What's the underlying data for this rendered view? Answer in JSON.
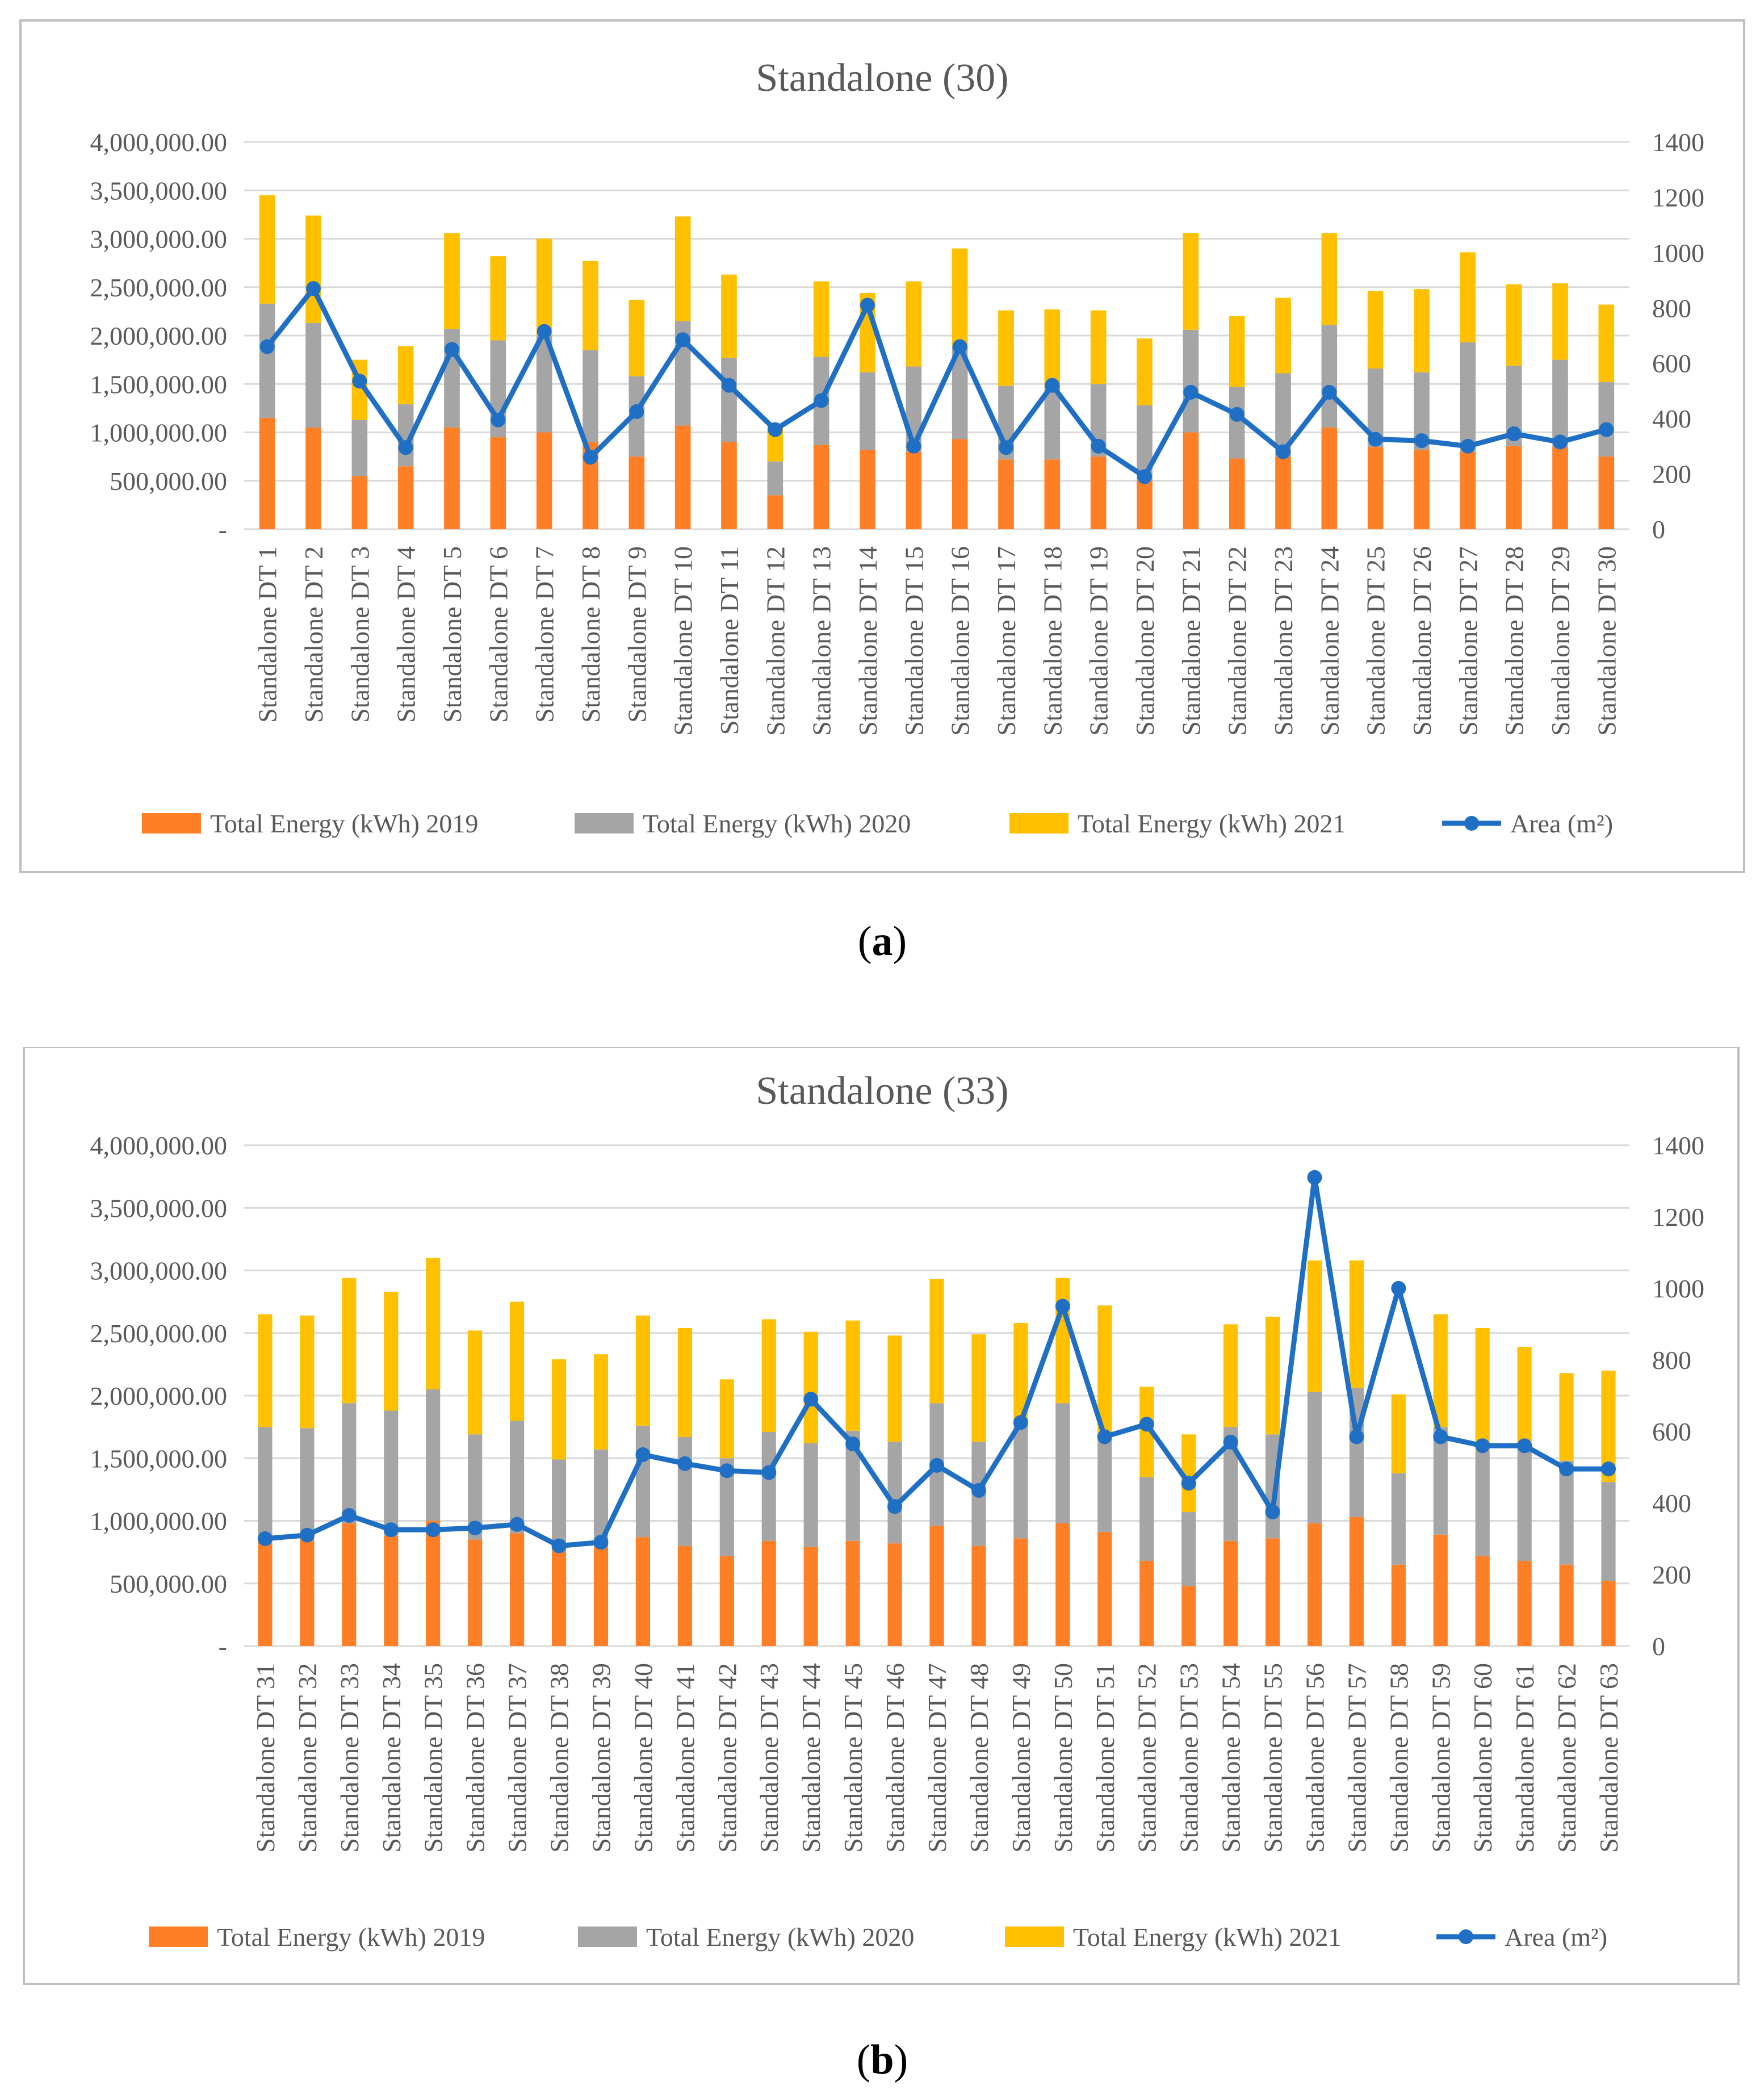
{
  "colors": {
    "e2019": "#FF7F27",
    "e2020": "#A5A5A5",
    "e2021": "#FFC000",
    "area": "#1F6FC5",
    "grid": "#D9D9D9",
    "frame": "#BFBFBF",
    "text": "#595959"
  },
  "chart_data": [
    {
      "type": "bar",
      "stacked": true,
      "title": "Standalone (30)",
      "caption_open": "(",
      "caption_letter": "a",
      "caption_close": ")",
      "y_left_ticks": [
        "-",
        "500,000.00",
        "1,000,000.00",
        "1,500,000.00",
        "2,000,000.00",
        "2,500,000.00",
        "3,000,000.00",
        "3,500,000.00",
        "4,000,000.00"
      ],
      "y_left_lim": [
        0,
        4000000
      ],
      "y_right_ticks": [
        "0",
        "200",
        "400",
        "600",
        "800",
        "1000",
        "1200",
        "1400"
      ],
      "y_right_lim": [
        0,
        1400
      ],
      "legend": [
        "Total Energy (kWh) 2019",
        "Total Energy (kWh) 2020",
        "Total Energy (kWh) 2021",
        "Area (m²)"
      ],
      "legend_position": "bottom",
      "categories": [
        "Standalone DT 1",
        "Standalone DT 2",
        "Standalone DT 3",
        "Standalone DT 4",
        "Standalone DT 5",
        "Standalone DT 6",
        "Standalone DT 7",
        "Standalone DT 8",
        "Standalone DT 9",
        "Standalone DT 10",
        "Standalone DT 11",
        "Standalone DT 12",
        "Standalone DT 13",
        "Standalone DT 14",
        "Standalone DT 15",
        "Standalone DT 16",
        "Standalone DT 17",
        "Standalone DT 18",
        "Standalone DT 19",
        "Standalone DT 20",
        "Standalone DT 21",
        "Standalone DT 22",
        "Standalone DT 23",
        "Standalone DT 24",
        "Standalone DT 25",
        "Standalone DT 26",
        "Standalone DT 27",
        "Standalone DT 28",
        "Standalone DT 29",
        "Standalone DT 30"
      ],
      "series": [
        {
          "name": "Total Energy (kWh) 2019",
          "axis": "left",
          "values": [
            1150000,
            1050000,
            550000,
            650000,
            1050000,
            950000,
            1000000,
            900000,
            750000,
            1070000,
            900000,
            350000,
            870000,
            820000,
            800000,
            930000,
            720000,
            720000,
            750000,
            500000,
            1000000,
            730000,
            750000,
            1050000,
            850000,
            820000,
            800000,
            860000,
            850000,
            750000
          ]
        },
        {
          "name": "Total Energy (kWh) 2020",
          "axis": "left",
          "values": [
            1180000,
            1080000,
            580000,
            640000,
            1020000,
            1000000,
            1000000,
            950000,
            830000,
            1080000,
            870000,
            350000,
            910000,
            800000,
            880000,
            960000,
            760000,
            760000,
            750000,
            780000,
            1060000,
            740000,
            860000,
            1060000,
            810000,
            800000,
            1130000,
            830000,
            900000,
            770000
          ]
        },
        {
          "name": "Total Energy (kWh) 2021",
          "axis": "left",
          "values": [
            1120000,
            1110000,
            620000,
            600000,
            990000,
            870000,
            1000000,
            920000,
            790000,
            1080000,
            860000,
            370000,
            780000,
            820000,
            880000,
            1010000,
            780000,
            790000,
            760000,
            690000,
            1000000,
            730000,
            780000,
            950000,
            800000,
            860000,
            930000,
            840000,
            790000,
            800000
          ]
        },
        {
          "name": "Area (m²)",
          "axis": "right",
          "type": "line",
          "values": [
            660,
            870,
            535,
            295,
            650,
            395,
            715,
            260,
            425,
            685,
            520,
            360,
            465,
            810,
            300,
            660,
            295,
            520,
            300,
            190,
            495,
            415,
            280,
            495,
            325,
            320,
            300,
            345,
            315,
            360
          ]
        }
      ]
    },
    {
      "type": "bar",
      "stacked": true,
      "title": "Standalone (33)",
      "caption_open": "(",
      "caption_letter": "b",
      "caption_close": ")",
      "y_left_ticks": [
        "-",
        "500,000.00",
        "1,000,000.00",
        "1,500,000.00",
        "2,000,000.00",
        "2,500,000.00",
        "3,000,000.00",
        "3,500,000.00",
        "4,000,000.00"
      ],
      "y_left_lim": [
        0,
        4000000
      ],
      "y_right_ticks": [
        "0",
        "200",
        "400",
        "600",
        "800",
        "1000",
        "1200",
        "1400"
      ],
      "y_right_lim": [
        0,
        1400
      ],
      "legend": [
        "Total Energy (kWh) 2019",
        "Total Energy (kWh) 2020",
        "Total Energy (kWh) 2021",
        "Area (m²)"
      ],
      "legend_position": "bottom",
      "categories": [
        "Standalone DT 31",
        "Standalone DT 32",
        "Standalone DT 33",
        "Standalone DT 34",
        "Standalone DT 35",
        "Standalone DT 36",
        "Standalone DT 37",
        "Standalone DT 38",
        "Standalone DT 39",
        "Standalone DT 40",
        "Standalone DT 41",
        "Standalone DT 42",
        "Standalone DT 43",
        "Standalone DT 44",
        "Standalone DT 45",
        "Standalone DT 46",
        "Standalone DT 47",
        "Standalone DT 48",
        "Standalone DT 49",
        "Standalone DT 50",
        "Standalone DT 51",
        "Standalone DT 52",
        "Standalone DT 53",
        "Standalone DT 54",
        "Standalone DT 55",
        "Standalone DT 56",
        "Standalone DT 57",
        "Standalone DT 58",
        "Standalone DT 59",
        "Standalone DT 60",
        "Standalone DT 61",
        "Standalone DT 62",
        "Standalone DT 63"
      ],
      "series": [
        {
          "name": "Total Energy (kWh) 2019",
          "axis": "left",
          "values": [
            870000,
            870000,
            980000,
            880000,
            1000000,
            850000,
            900000,
            760000,
            790000,
            870000,
            800000,
            720000,
            840000,
            790000,
            840000,
            820000,
            960000,
            800000,
            860000,
            980000,
            910000,
            680000,
            480000,
            840000,
            860000,
            980000,
            1030000,
            650000,
            890000,
            720000,
            680000,
            650000,
            520000
          ]
        },
        {
          "name": "Total Energy (kWh) 2020",
          "axis": "left",
          "values": [
            880000,
            870000,
            960000,
            1000000,
            1050000,
            840000,
            900000,
            730000,
            780000,
            890000,
            870000,
            780000,
            870000,
            830000,
            880000,
            810000,
            980000,
            830000,
            920000,
            960000,
            780000,
            670000,
            590000,
            910000,
            830000,
            1050000,
            1030000,
            730000,
            860000,
            840000,
            910000,
            830000,
            790000
          ]
        },
        {
          "name": "Total Energy (kWh) 2021",
          "axis": "left",
          "values": [
            900000,
            900000,
            1000000,
            950000,
            1050000,
            830000,
            950000,
            800000,
            760000,
            880000,
            870000,
            630000,
            900000,
            890000,
            880000,
            850000,
            990000,
            860000,
            800000,
            1000000,
            1030000,
            720000,
            620000,
            820000,
            940000,
            1050000,
            1020000,
            630000,
            900000,
            980000,
            800000,
            700000,
            890000
          ]
        },
        {
          "name": "Area (m²)",
          "axis": "right",
          "type": "line",
          "values": [
            300,
            310,
            365,
            325,
            325,
            330,
            340,
            280,
            290,
            535,
            510,
            490,
            485,
            690,
            565,
            390,
            505,
            435,
            625,
            950,
            585,
            620,
            455,
            570,
            375,
            1310,
            585,
            1000,
            585,
            560,
            560,
            495,
            495
          ]
        }
      ]
    }
  ]
}
